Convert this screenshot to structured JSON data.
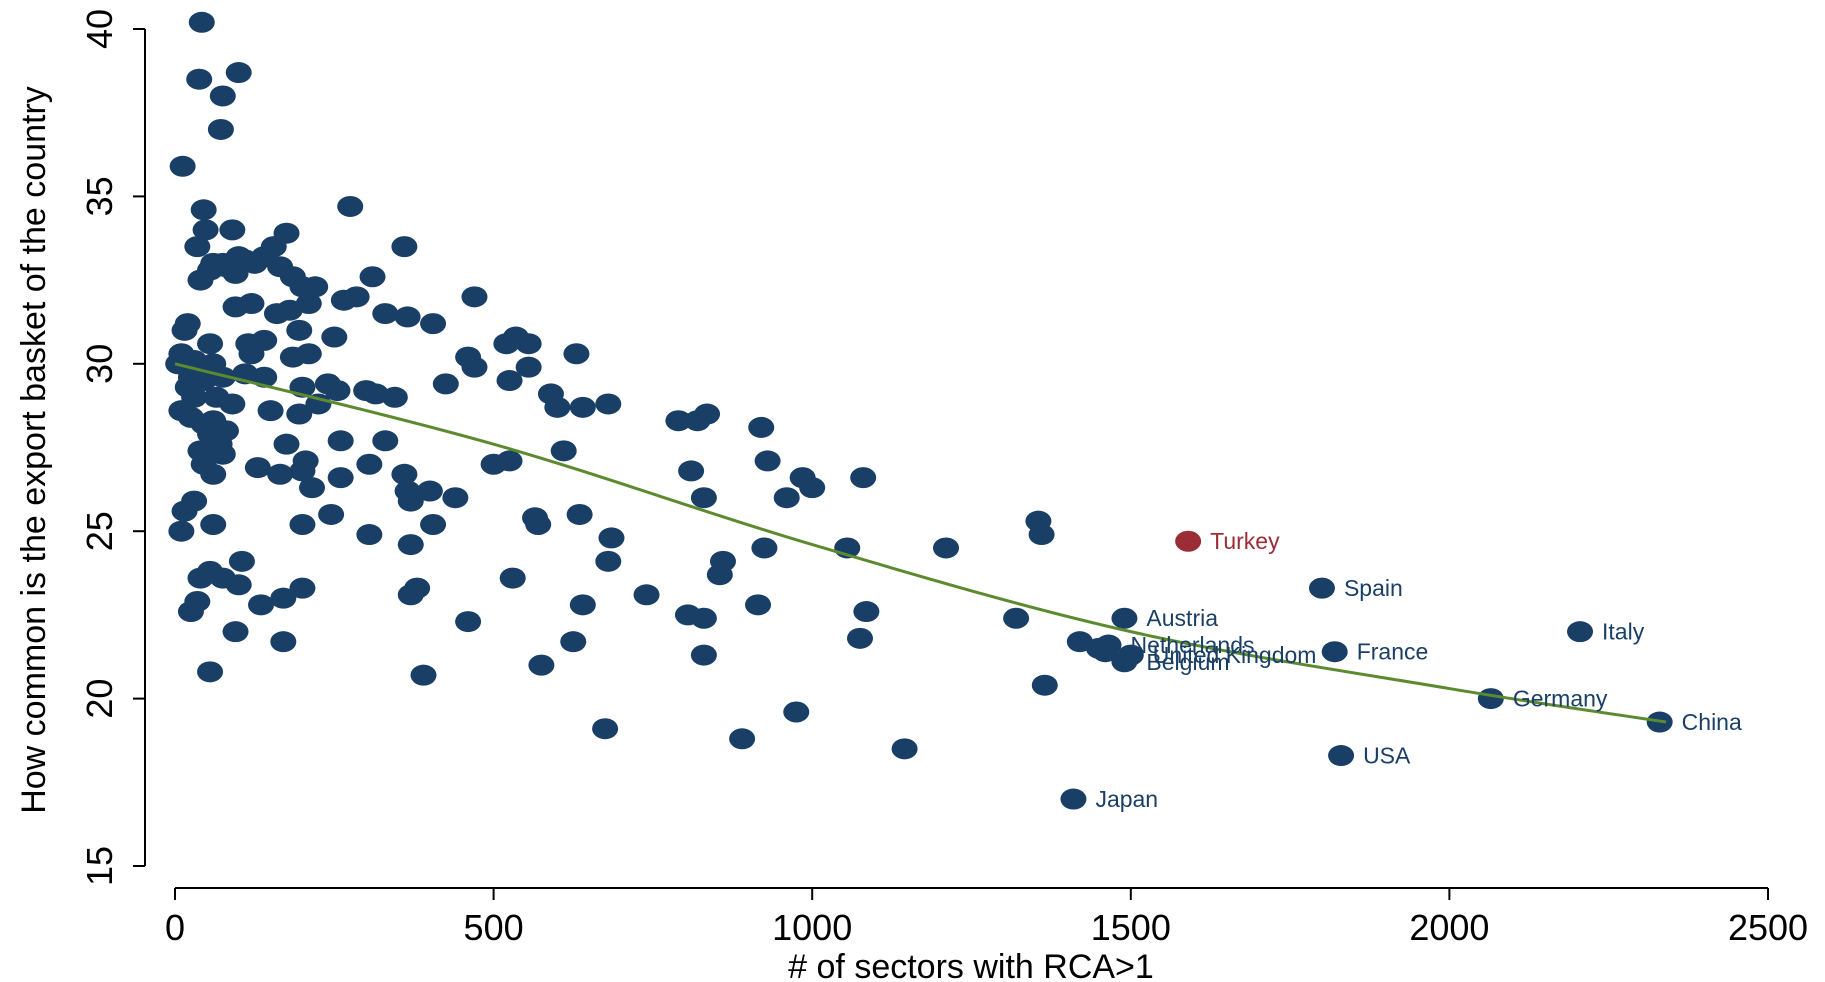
{
  "chart_data": {
    "type": "scatter",
    "xlabel": "# of sectors with RCA>1",
    "ylabel": "How common is the export basket of the country",
    "xlim": [
      0,
      2500
    ],
    "ylim": [
      15,
      40
    ],
    "x_ticks": [
      0,
      500,
      1000,
      1500,
      2000,
      2500
    ],
    "y_ticks": [
      15,
      20,
      25,
      30,
      35,
      40
    ],
    "grid": false,
    "colors": {
      "points": "#1a3f66",
      "highlight": "#9b2d36",
      "fit_line": "#5c8a2e",
      "axes": "#000000"
    },
    "fit_line": {
      "type": "curve",
      "points": [
        [
          0,
          30.0
        ],
        [
          500,
          27.6
        ],
        [
          1000,
          24.6
        ],
        [
          1500,
          22.0
        ],
        [
          2000,
          20.3
        ],
        [
          2340,
          19.3
        ]
      ]
    },
    "labeled_points": [
      {
        "label": "Turkey",
        "x": 1590,
        "y": 24.7,
        "highlight": true
      },
      {
        "label": "Spain",
        "x": 1800,
        "y": 23.3
      },
      {
        "label": "Austria",
        "x": 1490,
        "y": 22.4
      },
      {
        "label": "Italy",
        "x": 2205,
        "y": 22.0
      },
      {
        "label": "Netherlands",
        "x": 1465,
        "y": 21.6
      },
      {
        "label": "United Kingdom",
        "x": 1500,
        "y": 21.3
      },
      {
        "label": "France",
        "x": 1820,
        "y": 21.4
      },
      {
        "label": "Belgium",
        "x": 1490,
        "y": 21.1
      },
      {
        "label": "Germany",
        "x": 2065,
        "y": 20.0
      },
      {
        "label": "China",
        "x": 2330,
        "y": 19.3
      },
      {
        "label": "USA",
        "x": 1830,
        "y": 18.3
      },
      {
        "label": "Japan",
        "x": 1410,
        "y": 17.0
      }
    ],
    "points": [
      [
        42,
        40.2
      ],
      [
        38,
        38.5
      ],
      [
        100,
        38.7
      ],
      [
        75,
        38.0
      ],
      [
        72,
        37.0
      ],
      [
        12,
        35.9
      ],
      [
        45,
        34.6
      ],
      [
        275,
        34.7
      ],
      [
        90,
        34.0
      ],
      [
        175,
        33.9
      ],
      [
        155,
        33.5
      ],
      [
        360,
        33.5
      ],
      [
        35,
        33.5
      ],
      [
        48,
        34.0
      ],
      [
        60,
        33.0
      ],
      [
        80,
        32.9
      ],
      [
        100,
        33.2
      ],
      [
        125,
        33.0
      ],
      [
        140,
        33.2
      ],
      [
        165,
        32.9
      ],
      [
        185,
        32.6
      ],
      [
        200,
        32.3
      ],
      [
        220,
        32.3
      ],
      [
        310,
        32.6
      ],
      [
        40,
        32.5
      ],
      [
        55,
        32.8
      ],
      [
        75,
        33.0
      ],
      [
        95,
        32.7
      ],
      [
        110,
        33.1
      ],
      [
        95,
        31.7
      ],
      [
        120,
        31.8
      ],
      [
        160,
        31.5
      ],
      [
        180,
        31.6
      ],
      [
        210,
        31.8
      ],
      [
        265,
        31.9
      ],
      [
        285,
        32.0
      ],
      [
        330,
        31.5
      ],
      [
        365,
        31.4
      ],
      [
        405,
        31.2
      ],
      [
        470,
        32.0
      ],
      [
        20,
        31.2
      ],
      [
        15,
        31.0
      ],
      [
        55,
        30.6
      ],
      [
        115,
        30.6
      ],
      [
        140,
        30.7
      ],
      [
        195,
        31.0
      ],
      [
        250,
        30.8
      ],
      [
        520,
        30.6
      ],
      [
        535,
        30.8
      ],
      [
        555,
        30.6
      ],
      [
        630,
        30.3
      ],
      [
        10,
        30.3
      ],
      [
        30,
        30.1
      ],
      [
        5,
        30.0
      ],
      [
        60,
        30.0
      ],
      [
        120,
        30.3
      ],
      [
        185,
        30.2
      ],
      [
        210,
        30.3
      ],
      [
        460,
        30.2
      ],
      [
        470,
        29.9
      ],
      [
        555,
        29.9
      ],
      [
        525,
        29.5
      ],
      [
        25,
        29.6
      ],
      [
        45,
        29.5
      ],
      [
        75,
        29.6
      ],
      [
        110,
        29.7
      ],
      [
        140,
        29.6
      ],
      [
        200,
        29.3
      ],
      [
        240,
        29.4
      ],
      [
        255,
        29.2
      ],
      [
        300,
        29.2
      ],
      [
        315,
        29.1
      ],
      [
        345,
        29.0
      ],
      [
        425,
        29.4
      ],
      [
        590,
        29.1
      ],
      [
        600,
        28.7
      ],
      [
        640,
        28.7
      ],
      [
        680,
        28.8
      ],
      [
        20,
        29.3
      ],
      [
        30,
        29.0
      ],
      [
        65,
        29.0
      ],
      [
        90,
        28.8
      ],
      [
        150,
        28.6
      ],
      [
        195,
        28.5
      ],
      [
        225,
        28.8
      ],
      [
        10,
        28.6
      ],
      [
        25,
        28.4
      ],
      [
        45,
        28.2
      ],
      [
        60,
        28.3
      ],
      [
        80,
        28.0
      ],
      [
        55,
        27.9
      ],
      [
        70,
        27.6
      ],
      [
        40,
        27.4
      ],
      [
        75,
        27.3
      ],
      [
        175,
        27.6
      ],
      [
        260,
        27.7
      ],
      [
        330,
        27.7
      ],
      [
        790,
        28.3
      ],
      [
        820,
        28.3
      ],
      [
        835,
        28.5
      ],
      [
        920,
        28.1
      ],
      [
        610,
        27.4
      ],
      [
        500,
        27.0
      ],
      [
        525,
        27.1
      ],
      [
        45,
        27.0
      ],
      [
        60,
        26.7
      ],
      [
        130,
        26.9
      ],
      [
        165,
        26.7
      ],
      [
        200,
        26.8
      ],
      [
        205,
        27.1
      ],
      [
        305,
        27.0
      ],
      [
        360,
        26.7
      ],
      [
        810,
        26.8
      ],
      [
        930,
        27.1
      ],
      [
        985,
        26.6
      ],
      [
        1000,
        26.3
      ],
      [
        1080,
        26.6
      ],
      [
        260,
        26.6
      ],
      [
        215,
        26.3
      ],
      [
        365,
        26.2
      ],
      [
        370,
        25.9
      ],
      [
        400,
        26.2
      ],
      [
        440,
        26.0
      ],
      [
        830,
        26.0
      ],
      [
        960,
        26.0
      ],
      [
        15,
        25.6
      ],
      [
        30,
        25.9
      ],
      [
        60,
        25.2
      ],
      [
        200,
        25.2
      ],
      [
        245,
        25.5
      ],
      [
        405,
        25.2
      ],
      [
        565,
        25.4
      ],
      [
        570,
        25.2
      ],
      [
        635,
        25.5
      ],
      [
        10,
        25.0
      ],
      [
        305,
        24.9
      ],
      [
        370,
        24.6
      ],
      [
        685,
        24.8
      ],
      [
        925,
        24.5
      ],
      [
        1055,
        24.5
      ],
      [
        1210,
        24.5
      ],
      [
        1355,
        25.3
      ],
      [
        1360,
        24.9
      ],
      [
        860,
        24.1
      ],
      [
        680,
        24.1
      ],
      [
        105,
        24.1
      ],
      [
        55,
        23.8
      ],
      [
        75,
        23.6
      ],
      [
        100,
        23.4
      ],
      [
        40,
        23.6
      ],
      [
        200,
        23.3
      ],
      [
        170,
        23.0
      ],
      [
        370,
        23.1
      ],
      [
        380,
        23.3
      ],
      [
        530,
        23.6
      ],
      [
        855,
        23.7
      ],
      [
        740,
        23.1
      ],
      [
        35,
        22.9
      ],
      [
        25,
        22.6
      ],
      [
        135,
        22.8
      ],
      [
        640,
        22.8
      ],
      [
        915,
        22.8
      ],
      [
        460,
        22.3
      ],
      [
        805,
        22.5
      ],
      [
        830,
        22.4
      ],
      [
        1085,
        22.6
      ],
      [
        1320,
        22.4
      ],
      [
        95,
        22.0
      ],
      [
        170,
        21.7
      ],
      [
        625,
        21.7
      ],
      [
        1075,
        21.8
      ],
      [
        1420,
        21.7
      ],
      [
        1450,
        21.5
      ],
      [
        1460,
        21.4
      ],
      [
        830,
        21.3
      ],
      [
        55,
        20.8
      ],
      [
        390,
        20.7
      ],
      [
        575,
        21.0
      ],
      [
        1365,
        20.4
      ],
      [
        975,
        19.6
      ],
      [
        675,
        19.1
      ],
      [
        890,
        18.8
      ],
      [
        1145,
        18.5
      ]
    ]
  }
}
